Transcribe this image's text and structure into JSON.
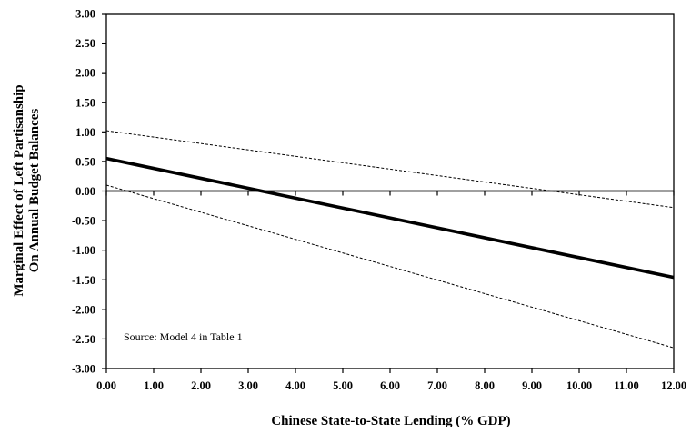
{
  "chart_data": {
    "type": "line",
    "title": "",
    "xlabel": "Chinese State-to-State Lending (% GDP)",
    "ylabel_lines": [
      "Marginal Effect of Left Partisanship",
      "On Annual Budget Balances"
    ],
    "xlim": [
      0,
      12
    ],
    "ylim": [
      -3,
      3
    ],
    "x_ticks": [
      "0.00",
      "1.00",
      "2.00",
      "3.00",
      "4.00",
      "5.00",
      "6.00",
      "7.00",
      "8.00",
      "9.00",
      "10.00",
      "11.00",
      "12.00"
    ],
    "y_ticks": [
      "3.00",
      "2.50",
      "2.00",
      "1.50",
      "1.00",
      "0.50",
      "0.00",
      "-0.50",
      "-1.00",
      "-1.50",
      "-2.00",
      "-2.50",
      "-3.00"
    ],
    "annotation": "Source: Model 4 in Table 1",
    "grid": false,
    "legend": "none",
    "series": [
      {
        "x": [
          0,
          12
        ],
        "y": [
          1.02,
          -0.28
        ],
        "style": "dashed"
      },
      {
        "x": [
          0,
          12
        ],
        "y": [
          0.55,
          -1.46
        ],
        "style": "solid-thick"
      },
      {
        "x": [
          0,
          12
        ],
        "y": [
          0.1,
          -2.65
        ],
        "style": "dashed"
      }
    ],
    "colors": {
      "line": "#000000",
      "axis": "#000000"
    }
  }
}
